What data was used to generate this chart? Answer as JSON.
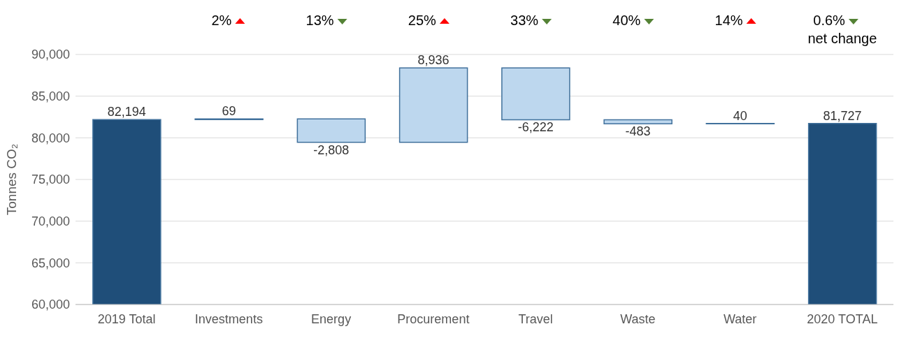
{
  "chart_data": {
    "type": "bar",
    "ylabel": "Tonnes CO₂",
    "categories": [
      "2019 Total",
      "Investments",
      "Energy",
      "Procurement",
      "Travel",
      "Waste",
      "Water",
      "2020 TOTAL"
    ],
    "values": [
      82194,
      69,
      -2808,
      8936,
      -6222,
      -483,
      40,
      81727
    ],
    "base": [
      null,
      82194,
      82263,
      79455,
      88391,
      82169,
      81686,
      null
    ],
    "colors": [
      "#1f4e79",
      "#bdd7ee",
      "#bdd7ee",
      "#bdd7ee",
      "#bdd7ee",
      "#bdd7ee",
      "#bdd7ee",
      "#1f4e79"
    ],
    "value_labels": [
      "82,194",
      "69",
      "-2,808",
      "8,936",
      "-6,222",
      "-483",
      "40",
      "81,727"
    ],
    "ylim": [
      60000,
      90000
    ],
    "yticks": [
      {
        "value": 60000,
        "label": "60,000"
      },
      {
        "value": 65000,
        "label": "65,000"
      },
      {
        "value": 70000,
        "label": "70,000"
      },
      {
        "value": 75000,
        "label": "75,000"
      },
      {
        "value": 80000,
        "label": "80,000"
      },
      {
        "value": 85000,
        "label": "85,000"
      },
      {
        "value": 90000,
        "label": "90,000"
      }
    ],
    "grid": "y",
    "legend": false,
    "annotations": [
      "2%",
      "13%",
      "25%",
      "33%",
      "40%",
      "14%",
      "0.6%\nnet change"
    ]
  }
}
